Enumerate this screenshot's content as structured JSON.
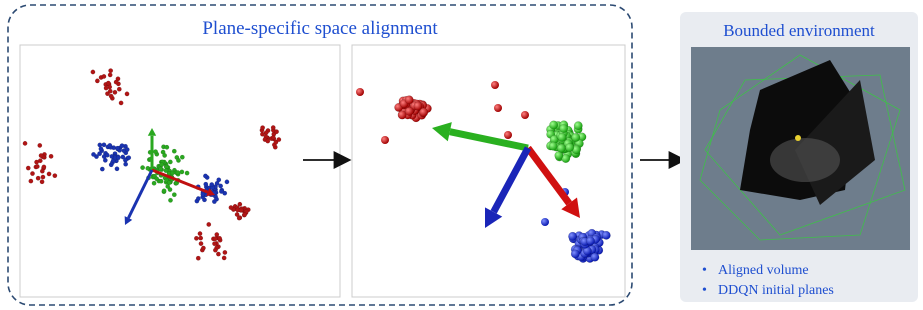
{
  "left_panel": {
    "title": "Plane-specific space alignment"
  },
  "right_panel": {
    "title": "Bounded environment",
    "bullets": [
      "Aligned volume",
      "DDQN initial planes"
    ]
  }
}
